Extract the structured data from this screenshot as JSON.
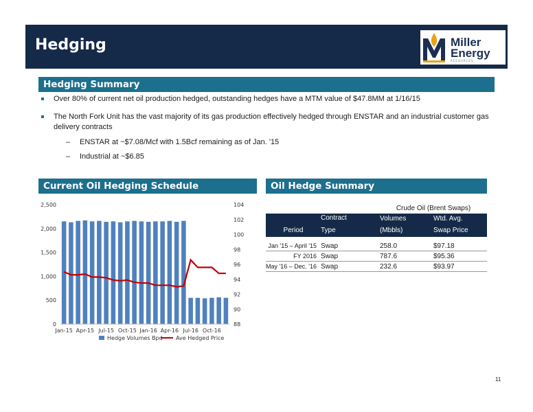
{
  "header": {
    "title": "Hedging",
    "logo_line1": "Miller",
    "logo_line2": "Energy",
    "logo_line3": "RESOURCES"
  },
  "summary": {
    "heading": "Hedging Summary",
    "bullet1": "Over 80% of current net oil production hedged, outstanding hedges have a MTM value of $47.8MM at 1/16/15",
    "bullet2": "The North Fork Unit has the vast majority of its gas production effectively hedged through ENSTAR and an industrial customer gas delivery contracts",
    "sub1": "ENSTAR at ~$7.08/Mcf with 1.5Bcf remaining as of Jan. '15",
    "sub2": "Industrial at ~$6.85",
    "dash": "–"
  },
  "schedule": {
    "heading": "Current Oil Hedging Schedule"
  },
  "chart_data": {
    "type": "bar",
    "categories": [
      "Jan-15",
      "Feb-15",
      "Mar-15",
      "Apr-15",
      "May-15",
      "Jun-15",
      "Jul-15",
      "Aug-15",
      "Sep-15",
      "Oct-15",
      "Nov-15",
      "Dec-15",
      "Jan-16",
      "Feb-16",
      "Mar-16",
      "Apr-16",
      "May-16",
      "Jun-16",
      "Jul-16",
      "Aug-16",
      "Sep-16",
      "Oct-16",
      "Nov-16",
      "Dec-16"
    ],
    "x_tick_labels": [
      "Jan-15",
      "Apr-15",
      "Jul-15",
      "Oct-15",
      "Jan-16",
      "Apr-16",
      "Jul-16",
      "Oct-16"
    ],
    "series": [
      {
        "name": "Hedge Volumes Bpd",
        "type": "bar",
        "axis": "left",
        "values": [
          2150,
          2130,
          2160,
          2170,
          2150,
          2160,
          2140,
          2150,
          2130,
          2150,
          2160,
          2150,
          2140,
          2150,
          2150,
          2160,
          2140,
          2160,
          550,
          550,
          540,
          550,
          560,
          550
        ]
      },
      {
        "name": "Ave Hedged Price",
        "type": "line",
        "axis": "right",
        "values": [
          95.0,
          94.6,
          94.6,
          94.7,
          94.3,
          94.3,
          94.2,
          93.9,
          93.8,
          93.9,
          93.6,
          93.5,
          93.5,
          93.2,
          93.2,
          93.2,
          93.0,
          93.1,
          96.6,
          95.6,
          95.6,
          95.6,
          94.8,
          94.8
        ]
      }
    ],
    "ylim_left": [
      0,
      2500
    ],
    "yticks_left": [
      "0",
      "500",
      "1,000",
      "1,500",
      "2,000",
      "2,500"
    ],
    "ylim_right": [
      88,
      104
    ],
    "yticks_right": [
      "88",
      "90",
      "92",
      "94",
      "96",
      "98",
      "100",
      "102",
      "104"
    ],
    "legend": "bottom",
    "colors": {
      "bar": "#4f81bd",
      "line": "#c00000"
    }
  },
  "oil_summary": {
    "heading": "Oil Hedge Summary",
    "group_header": "Crude Oil (Brent Swaps)",
    "col_contract_1": "Contract",
    "col_contract_2": "Type",
    "col_volumes_1": "Volumes",
    "col_volumes_2": "(Mbbls)",
    "col_price_1": "Wtd. Avg.",
    "col_price_2": "Swap Price",
    "col_period": "Period",
    "rows": [
      {
        "period": "Jan '15 – April '15",
        "type": "Swap",
        "volume": "258.0",
        "price": "$97.18"
      },
      {
        "period": "FY 2016",
        "type": "Swap",
        "volume": "787.6",
        "price": "$95.36"
      },
      {
        "period": "May '16 – Dec. '16",
        "type": "Swap",
        "volume": "232.6",
        "price": "$93.97"
      }
    ]
  },
  "page_number": "11"
}
